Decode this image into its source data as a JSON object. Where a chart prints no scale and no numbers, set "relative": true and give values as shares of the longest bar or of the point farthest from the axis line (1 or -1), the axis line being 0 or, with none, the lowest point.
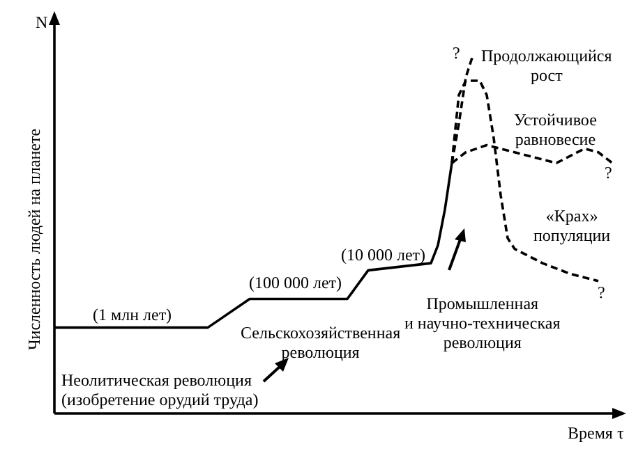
{
  "chart_data": {
    "type": "line",
    "relative": true,
    "legend": false,
    "tick_labels": false,
    "xlabel": "Время τ",
    "ylabel": "Численность людей на планете",
    "categories": [
      null,
      null,
      null,
      null,
      null,
      null,
      null,
      null,
      null,
      null,
      null,
      null,
      null,
      null,
      null,
      null,
      null,
      null,
      null,
      null,
      null,
      null,
      null,
      null,
      null,
      null,
      null,
      null,
      null,
      null,
      null,
      null,
      null,
      null,
      null,
      null,
      null,
      null,
      null,
      null,
      null,
      null,
      null,
      null,
      null,
      null,
      null,
      null,
      null,
      null,
      null,
      null,
      null,
      null,
      null,
      null,
      null,
      null,
      null,
      null,
      null,
      null,
      null,
      null,
      null,
      null,
      null,
      null,
      null,
      null,
      null,
      null,
      null,
      null,
      null,
      null,
      null,
      null,
      null,
      null,
      null
    ],
    "series": [
      {
        "color": "#000000",
        "line_style": "solid",
        "values": [
          0.24,
          null,
          null,
          null,
          null,
          null,
          null,
          null,
          null,
          null,
          null,
          null,
          null,
          null,
          null,
          null,
          null,
          null,
          null,
          null,
          null,
          null,
          0.24,
          null,
          null,
          null,
          null,
          null,
          0.32,
          null,
          null,
          null,
          null,
          null,
          null,
          null,
          null,
          null,
          null,
          null,
          null,
          null,
          0.32,
          null,
          null,
          0.4,
          null,
          null,
          null,
          null,
          null,
          null,
          null,
          null,
          0.42,
          0.47,
          0.57,
          0.7,
          null,
          null,
          null,
          null,
          null,
          null,
          null,
          null,
          null,
          null,
          null,
          null,
          null,
          null,
          null,
          null,
          null,
          null,
          null,
          null,
          null,
          null,
          null
        ]
      },
      {
        "name": "Продолжающийся\nрост",
        "color": "#000000",
        "line_style": "dashed",
        "values": [
          null,
          null,
          null,
          null,
          null,
          null,
          null,
          null,
          null,
          null,
          null,
          null,
          null,
          null,
          null,
          null,
          null,
          null,
          null,
          null,
          null,
          null,
          null,
          null,
          null,
          null,
          null,
          null,
          null,
          null,
          null,
          null,
          null,
          null,
          null,
          null,
          null,
          null,
          null,
          null,
          null,
          null,
          null,
          null,
          null,
          null,
          null,
          null,
          null,
          null,
          null,
          null,
          null,
          null,
          null,
          null,
          null,
          0.7,
          0.81,
          0.94,
          1,
          null,
          null,
          null,
          null,
          null,
          null,
          null,
          null,
          null,
          null,
          null,
          null,
          null,
          null,
          null,
          null,
          null,
          null,
          null,
          null
        ]
      },
      {
        "name": "Устойчивое\nравновесие",
        "color": "#000000",
        "line_style": "dashed",
        "values": [
          null,
          null,
          null,
          null,
          null,
          null,
          null,
          null,
          null,
          null,
          null,
          null,
          null,
          null,
          null,
          null,
          null,
          null,
          null,
          null,
          null,
          null,
          null,
          null,
          null,
          null,
          null,
          null,
          null,
          null,
          null,
          null,
          null,
          null,
          null,
          null,
          null,
          null,
          null,
          null,
          null,
          null,
          null,
          null,
          null,
          null,
          null,
          null,
          null,
          null,
          null,
          null,
          null,
          null,
          null,
          null,
          null,
          0.7,
          null,
          0.73,
          null,
          null,
          0.75,
          null,
          null,
          null,
          0.73,
          null,
          null,
          null,
          0.71,
          null,
          0.7,
          null,
          null,
          null,
          0.74,
          null,
          0.73,
          null,
          0.7
        ]
      },
      {
        "name": "«Крах»\nпопуляции",
        "color": "#000000",
        "line_style": "dashed",
        "values": [
          null,
          null,
          null,
          null,
          null,
          null,
          null,
          null,
          null,
          null,
          null,
          null,
          null,
          null,
          null,
          null,
          null,
          null,
          null,
          null,
          null,
          null,
          null,
          null,
          null,
          null,
          null,
          null,
          null,
          null,
          null,
          null,
          null,
          null,
          null,
          null,
          null,
          null,
          null,
          null,
          null,
          null,
          null,
          null,
          null,
          null,
          null,
          null,
          null,
          null,
          null,
          null,
          null,
          null,
          null,
          null,
          null,
          0.7,
          0.89,
          0.93,
          0.93,
          0.93,
          0.89,
          0.77,
          0.61,
          0.49,
          0.46,
          null,
          null,
          null,
          0.42,
          null,
          null,
          null,
          0.39,
          null,
          null,
          null,
          0.37,
          null,
          null
        ]
      }
    ],
    "annotations": [
      "N",
      "(1 млн лет)",
      "(100 000 лет)",
      "(10 000 лет)",
      "Сельскохозяйственная\nреволюция",
      "Промышленная\nи научно-техническая\nреволюция",
      "Неолитическая революция\n(изобретение орудий труда)",
      "?",
      "?",
      "?"
    ]
  }
}
